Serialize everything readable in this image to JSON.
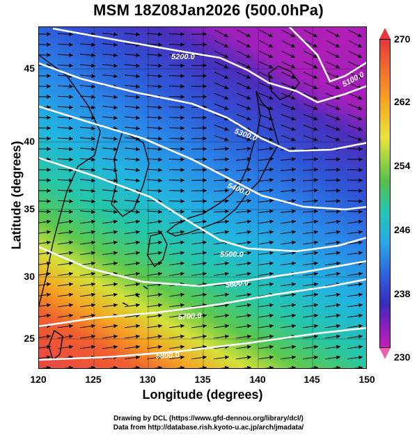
{
  "title": "MSM 18Z08Jan2026 (500.0hPa)",
  "x_axis": {
    "label": "Longitude (degrees)",
    "ticks": [
      "120",
      "125",
      "130",
      "135",
      "140",
      "145",
      "150"
    ],
    "range": [
      120,
      150
    ]
  },
  "y_axis": {
    "label": "Latitude  (degrees)",
    "ticks": [
      "25",
      "30",
      "35",
      "40",
      "45"
    ],
    "range": [
      22.4,
      47.6
    ]
  },
  "colorbar": {
    "labels": [
      "270",
      "262",
      "254",
      "246",
      "238",
      "230"
    ],
    "range": [
      230,
      270
    ]
  },
  "contours": [
    {
      "label": "5100.0"
    },
    {
      "label": "5200.0"
    },
    {
      "label": "5300.0"
    },
    {
      "label": "5400.0"
    },
    {
      "label": "5500.0"
    },
    {
      "label": "5600.0"
    },
    {
      "label": "5700.0"
    },
    {
      "label": "5800.0"
    }
  ],
  "credits": {
    "line1": "Drawing by DCL (https://www.gfd-dennou.org/library/dcl/)",
    "line2": "Data from http://database.rish.kyoto-u.ac.jp/arch/jmadata/"
  },
  "colors": {
    "warm": "#e8373a",
    "cold": "#8a1fbf",
    "contour": "#ffffff",
    "coast": "#000000"
  }
}
